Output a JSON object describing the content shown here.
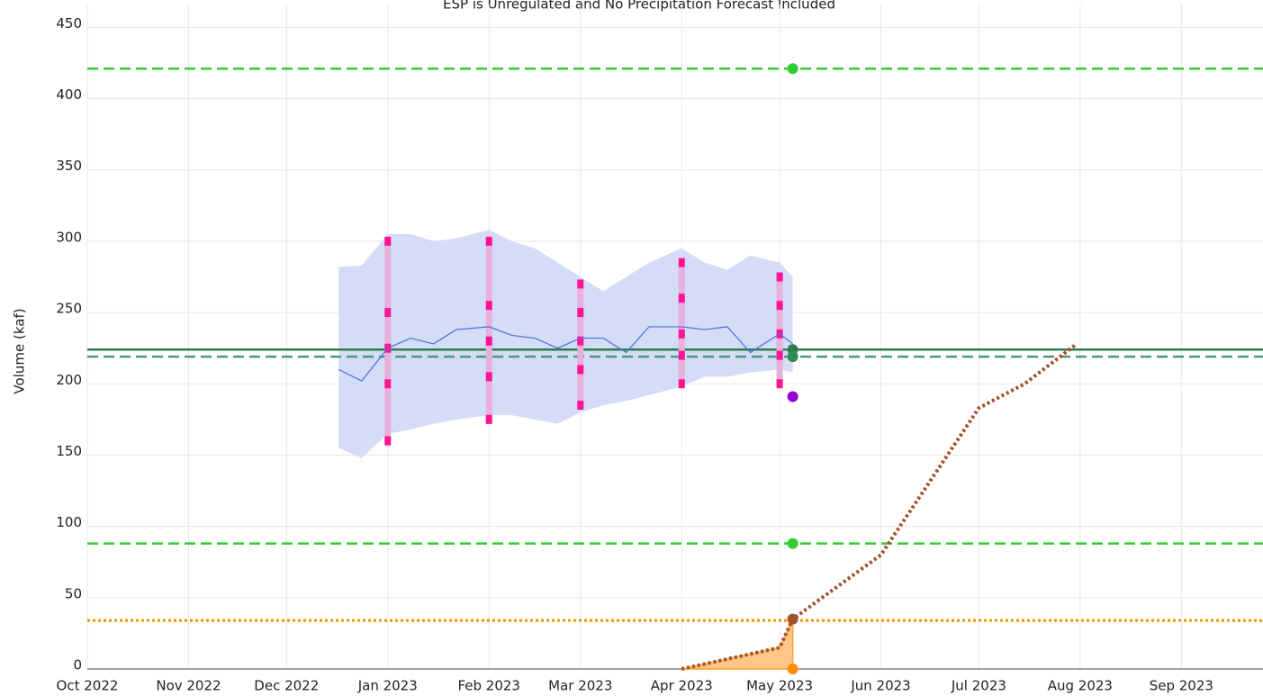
{
  "chart_data": {
    "type": "line",
    "title": "ESP is Unregulated and No Precipitation Forecast Included",
    "y_label": "Volume (kaf)",
    "xlim": [
      "2022-10-01",
      "2023-09-26"
    ],
    "xticks": [
      {
        "value": "2022-10-01",
        "label": "Oct 2022"
      },
      {
        "value": "2022-11-01",
        "label": "Nov 2022"
      },
      {
        "value": "2022-12-01",
        "label": "Dec 2022"
      },
      {
        "value": "2023-01-01",
        "label": "Jan 2023"
      },
      {
        "value": "2023-02-01",
        "label": "Feb 2023"
      },
      {
        "value": "2023-03-01",
        "label": "Mar 2023"
      },
      {
        "value": "2023-04-01",
        "label": "Apr 2023"
      },
      {
        "value": "2023-05-01",
        "label": "May 2023"
      },
      {
        "value": "2023-06-01",
        "label": "Jun 2023"
      },
      {
        "value": "2023-07-01",
        "label": "Jul 2023"
      },
      {
        "value": "2023-08-01",
        "label": "Aug 2023"
      },
      {
        "value": "2023-09-01",
        "label": "Sep 2023"
      }
    ],
    "ylim": [
      0,
      466
    ],
    "yticks": [
      0,
      50,
      100,
      150,
      200,
      250,
      300,
      350,
      400,
      450
    ],
    "grid": true,
    "hlines": [
      {
        "value": 421,
        "color": "#33cc33",
        "style": "dashed"
      },
      {
        "value": 88,
        "color": "#33cc33",
        "style": "dashed"
      },
      {
        "value": 224,
        "color": "#2e7d4f",
        "style": "solid"
      },
      {
        "value": 219,
        "color": "#4a9a72",
        "style": "dashed"
      },
      {
        "value": 34,
        "color": "#ff8c00",
        "style": "dotted"
      }
    ],
    "band": {
      "color": "#d4dcf7",
      "x": [
        "2022-12-17",
        "2022-12-24",
        "2023-01-01",
        "2023-01-08",
        "2023-01-15",
        "2023-01-22",
        "2023-02-01",
        "2023-02-08",
        "2023-02-15",
        "2023-02-22",
        "2023-03-01",
        "2023-03-08",
        "2023-03-15",
        "2023-03-22",
        "2023-04-01",
        "2023-04-08",
        "2023-04-15",
        "2023-04-22",
        "2023-05-01",
        "2023-05-05"
      ],
      "upper": [
        282,
        283,
        305,
        305,
        300,
        302,
        308,
        300,
        295,
        285,
        275,
        265,
        275,
        285,
        295,
        285,
        280,
        290,
        285,
        275
      ],
      "lower": [
        155,
        148,
        165,
        168,
        172,
        175,
        178,
        178,
        175,
        172,
        180,
        185,
        188,
        192,
        198,
        205,
        205,
        208,
        210,
        208
      ]
    },
    "series": [
      {
        "color": "#4a6fdc",
        "style": "solid",
        "x": [
          "2022-12-17",
          "2022-12-24",
          "2023-01-01",
          "2023-01-08",
          "2023-01-15",
          "2023-01-22",
          "2023-02-01",
          "2023-02-08",
          "2023-02-15",
          "2023-02-22",
          "2023-03-01",
          "2023-03-08",
          "2023-03-15",
          "2023-03-22",
          "2023-04-01",
          "2023-04-08",
          "2023-04-15",
          "2023-04-22",
          "2023-05-01",
          "2023-05-05"
        ],
        "values": [
          210,
          202,
          225,
          232,
          228,
          238,
          240,
          234,
          232,
          225,
          232,
          232,
          222,
          240,
          240,
          238,
          240,
          222,
          235,
          228
        ]
      },
      {
        "color": "#a0522d",
        "style": "dotted",
        "x": [
          "2023-04-01",
          "2023-05-01",
          "2023-05-05",
          "2023-06-01",
          "2023-07-01",
          "2023-07-15",
          "2023-07-31"
        ],
        "values": [
          0,
          15,
          35,
          80,
          183,
          200,
          228
        ]
      }
    ],
    "area": {
      "color": "#ffc68a",
      "line": "#ff9f2e",
      "x": [
        "2023-04-01",
        "2023-05-01",
        "2023-05-05",
        "2023-05-05"
      ],
      "values": [
        0,
        15,
        35,
        0
      ]
    },
    "percentile_bars": {
      "color": "#ff1493",
      "bar_color": "#e8b0dc",
      "x": [
        "2023-01-01",
        "2023-02-01",
        "2023-03-01",
        "2023-04-01",
        "2023-05-01"
      ],
      "values": [
        [
          300,
          250,
          225,
          200,
          160
        ],
        [
          300,
          255,
          230,
          205,
          175
        ],
        [
          270,
          250,
          230,
          210,
          185
        ],
        [
          285,
          260,
          235,
          220,
          200
        ],
        [
          275,
          255,
          235,
          220,
          200
        ]
      ]
    },
    "points": {
      "x": "2023-05-05",
      "values": [
        421,
        88,
        224,
        219,
        191,
        35,
        0
      ],
      "colors": [
        "#33cc33",
        "#33cc33",
        "#2e7d4f",
        "#2e8b57",
        "#9400d3",
        "#a0522d",
        "#ff8c00"
      ]
    }
  }
}
